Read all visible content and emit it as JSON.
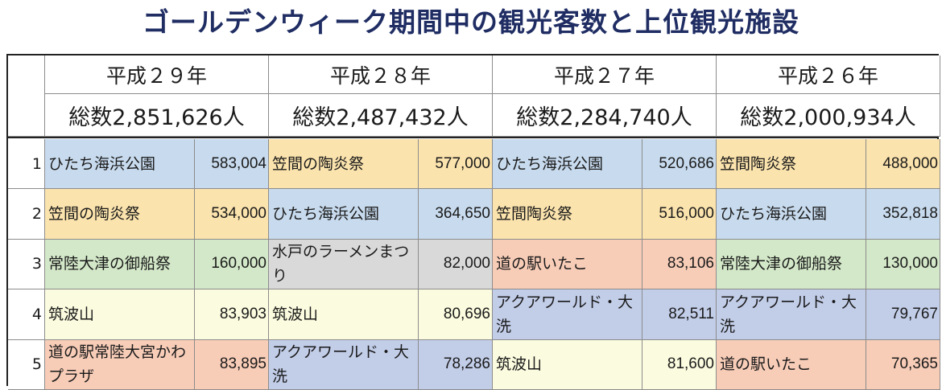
{
  "title": "ゴールデンウィーク期間中の観光客数と上位観光施設",
  "colors": {
    "hitachi": "#c8dbee",
    "kasama": "#fbe3ad",
    "hitachinaka_green": "#d3e8c8",
    "mito_gray": "#d9d9d9",
    "tsukuba": "#fbfbdf",
    "station": "#f8cdb8",
    "aqua": "#c2cde8"
  },
  "years": [
    {
      "label": "平成２９年",
      "total": "総数2,851,626人",
      "ranks": [
        {
          "name": "ひたち海浜公園",
          "value": "583,004",
          "color": "hitachi"
        },
        {
          "name": "笠間の陶炎祭",
          "value": "534,000",
          "color": "kasama"
        },
        {
          "name": "常陸大津の御船祭",
          "value": "160,000",
          "color": "hitachinaka_green"
        },
        {
          "name": "筑波山",
          "value": "83,903",
          "color": "tsukuba"
        },
        {
          "name": "道の駅常陸大宮かわプラザ",
          "value": "83,895",
          "color": "station"
        }
      ]
    },
    {
      "label": "平成２８年",
      "total": "総数2,487,432人",
      "ranks": [
        {
          "name": "笠間の陶炎祭",
          "value": "577,000",
          "color": "kasama"
        },
        {
          "name": "ひたち海浜公園",
          "value": "364,650",
          "color": "hitachi"
        },
        {
          "name": "水戸のラーメンまつり",
          "value": "82,000",
          "color": "mito_gray"
        },
        {
          "name": "筑波山",
          "value": "80,696",
          "color": "tsukuba"
        },
        {
          "name": "アクアワールド・大洗",
          "value": "78,286",
          "color": "aqua"
        }
      ]
    },
    {
      "label": "平成２７年",
      "total": "総数2,284,740人",
      "ranks": [
        {
          "name": "ひたち海浜公園",
          "value": "520,686",
          "color": "hitachi"
        },
        {
          "name": "笠間陶炎祭",
          "value": "516,000",
          "color": "kasama"
        },
        {
          "name": "道の駅いたこ",
          "value": "83,106",
          "color": "station"
        },
        {
          "name": "アクアワールド・大洗",
          "value": "82,511",
          "color": "aqua"
        },
        {
          "name": "筑波山",
          "value": "81,600",
          "color": "tsukuba"
        }
      ]
    },
    {
      "label": "平成２６年",
      "total": "総数2,000,934人",
      "ranks": [
        {
          "name": "笠間陶炎祭",
          "value": "488,000",
          "color": "kasama"
        },
        {
          "name": "ひたち海浜公園",
          "value": "352,818",
          "color": "hitachi"
        },
        {
          "name": "常陸大津の御船祭",
          "value": "130,000",
          "color": "hitachinaka_green"
        },
        {
          "name": "アクアワールド・大洗",
          "value": "79,767",
          "color": "aqua"
        },
        {
          "name": "道の駅いたこ",
          "value": "70,365",
          "color": "station"
        }
      ]
    }
  ],
  "rank_numbers": [
    "1",
    "2",
    "3",
    "4",
    "5"
  ]
}
